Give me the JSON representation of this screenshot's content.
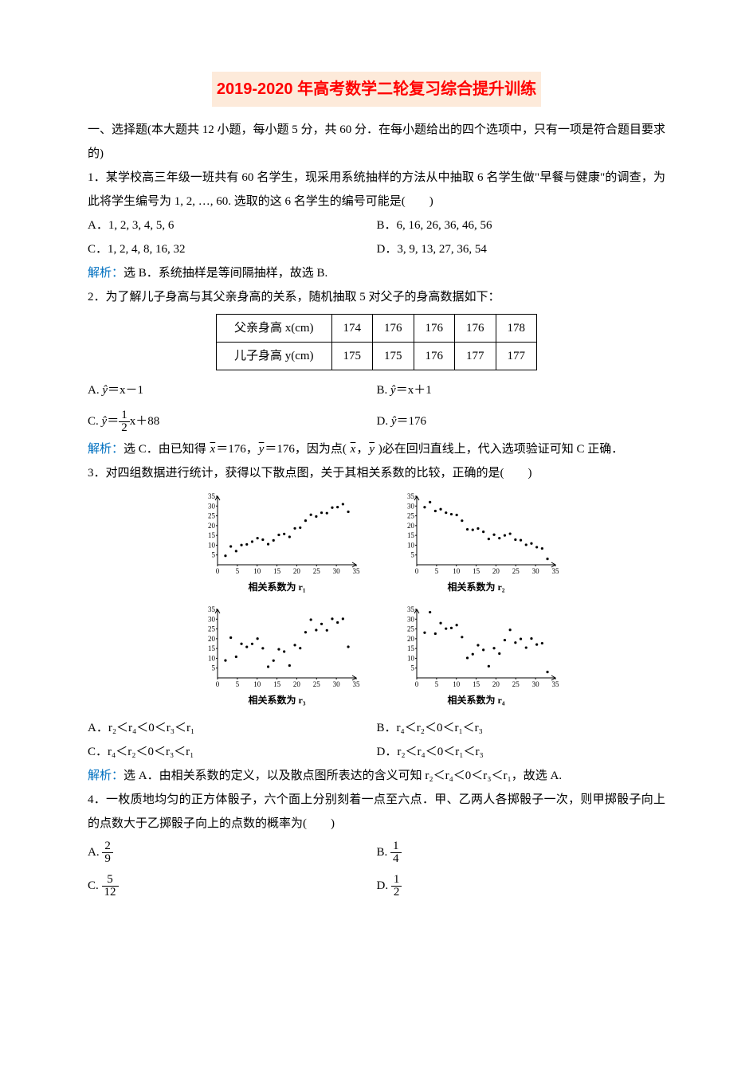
{
  "title": "2019-2020 年高考数学二轮复习综合提升训练",
  "section_intro": "一、选择题(本大题共 12 小题，每小题 5 分，共 60 分．在每小题给出的四个选项中，只有一项是符合题目要求的)",
  "q1": {
    "stem": "1．某学校高三年级一班共有 60 名学生，现采用系统抽样的方法从中抽取 6 名学生做\"早餐与健康\"的调查，为此将学生编号为 1, 2, …, 60. 选取的这 6 名学生的编号可能是(　　)",
    "optA": "A．1, 2, 3, 4, 5, 6",
    "optB": "B．6, 16, 26, 36, 46, 56",
    "optC": "C．1, 2, 4, 8, 16, 32",
    "optD": "D．3, 9, 13, 27, 36, 54",
    "analysis": "选 B．系统抽样是等间隔抽样，故选 B."
  },
  "q2": {
    "stem": "2．为了解儿子身高与其父亲身高的关系，随机抽取 5 对父子的身高数据如下：",
    "table": {
      "row1_label": "父亲身高 x(cm)",
      "row1": [
        "174",
        "176",
        "176",
        "176",
        "178"
      ],
      "row2_label": "儿子身高 y(cm)",
      "row2": [
        "175",
        "175",
        "176",
        "177",
        "177"
      ]
    },
    "optA_pre": "A. ",
    "optA_post": "＝x－1",
    "optB_pre": "B. ",
    "optB_post": "＝x＋1",
    "optC_pre": "C. ",
    "optC_eq": "＝",
    "optC_tail": "x＋88",
    "optD_pre": "D. ",
    "optD_post": "＝176",
    "analysis_a": "选 C．由已知得 ",
    "analysis_b": "＝176，",
    "analysis_c": "＝176，因为点( ",
    "analysis_d": "，",
    "analysis_e": " )必在回归直线上，代入选项验证可知 C 正确．"
  },
  "q3": {
    "stem": "3．对四组数据进行统计，获得以下散点图，关于其相关系数的比较，正确的是(　　)",
    "chart": {
      "y_ticks": [
        "35",
        "30",
        "25",
        "20",
        "15",
        "10",
        "5"
      ],
      "x_ticks": [
        "0",
        "5",
        "10",
        "15",
        "20",
        "25",
        "30",
        "35"
      ],
      "caption1": "相关系数为 r₁",
      "caption2": "相关系数为 r₂",
      "caption3": "相关系数为 r₃",
      "caption4": "相关系数为 r₄",
      "panels": [
        {
          "trend": "pos_strong"
        },
        {
          "trend": "neg_strong"
        },
        {
          "trend": "pos_weak"
        },
        {
          "trend": "neg_weak"
        }
      ],
      "axis_color": "#000000",
      "point_color": "#000000",
      "bg": "#ffffff"
    },
    "optA": "A．r₂＜r₄＜0＜r₃＜r₁",
    "optB": "B．r₄＜r₂＜0＜r₁＜r₃",
    "optC": "C．r₄＜r₂＜0＜r₃＜r₁",
    "optD": "D．r₂＜r₄＜0＜r₁＜r₃",
    "analysis": "选 A．由相关系数的定义，以及散点图所表达的含义可知 r₂＜r₄＜0＜r₃＜r₁，故选 A."
  },
  "q4": {
    "stem": "4．一枚质地均匀的正方体骰子，六个面上分别刻着一点至六点．甲、乙两人各掷骰子一次，则甲掷骰子向上的点数大于乙掷骰子向上的点数的概率为(　　)",
    "optA_label": "A.",
    "optA_num": "2",
    "optA_den": "9",
    "optB_label": "B.",
    "optB_num": "1",
    "optB_den": "4",
    "optC_label": "C.",
    "optC_num": "5",
    "optC_den": "12",
    "optD_label": "D.",
    "optD_num": "1",
    "optD_den": "2"
  },
  "labels": {
    "analysis": "解析："
  }
}
